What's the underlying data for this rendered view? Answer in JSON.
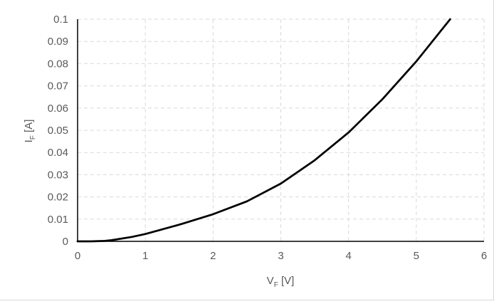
{
  "chart_data": {
    "type": "line",
    "xlabel": {
      "main": "V",
      "sub": "F",
      "unit": " [V]"
    },
    "ylabel": {
      "main": "I",
      "sub": "F",
      "unit": " [A]"
    },
    "xlim": [
      0,
      6
    ],
    "ylim": [
      0,
      0.1
    ],
    "x_ticks": [
      "0",
      "1",
      "2",
      "3",
      "4",
      "5",
      "6"
    ],
    "y_ticks": [
      "0",
      "0.01",
      "0.02",
      "0.03",
      "0.04",
      "0.05",
      "0.06",
      "0.07",
      "0.08",
      "0.09",
      "0.1"
    ],
    "grid": true,
    "legend": "none",
    "series": [
      {
        "color": "#000000",
        "x": [
          0,
          0.2,
          0.4,
          0.5,
          0.6,
          0.8,
          1.0,
          1.5,
          2.0,
          2.5,
          3.0,
          3.5,
          4.0,
          4.5,
          5.0,
          5.5
        ],
        "y": [
          0,
          0,
          0.0002,
          0.0005,
          0.001,
          0.002,
          0.0033,
          0.0075,
          0.0122,
          0.018,
          0.026,
          0.0365,
          0.049,
          0.064,
          0.081,
          0.1
        ]
      }
    ],
    "colors": {
      "grid": "#d9d9d9",
      "axis": "#000000",
      "line": "#000000"
    }
  }
}
